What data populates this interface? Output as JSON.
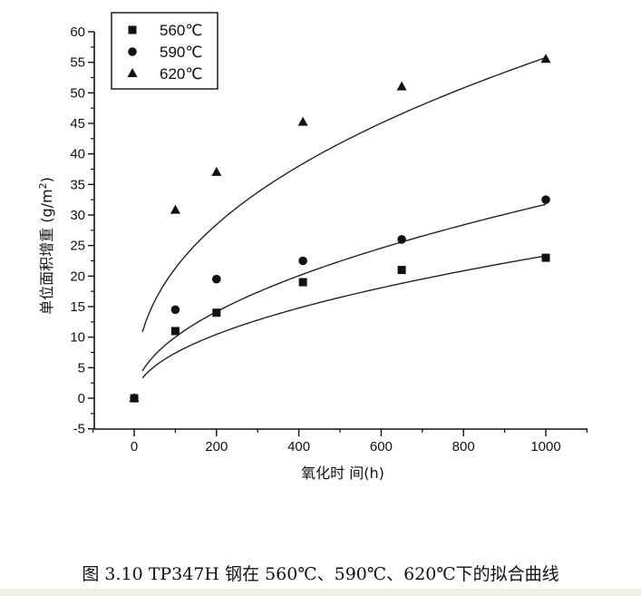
{
  "chart_data": {
    "type": "scatter",
    "xlabel": "氧化时 间(h)",
    "ylabel_main": "单位面积增重 (g/m",
    "ylabel_sup": "2",
    "ylabel_end": ")",
    "xlim": [
      -100,
      1100
    ],
    "ylim": [
      -5,
      60
    ],
    "x_ticks": [
      0,
      200,
      400,
      600,
      800,
      1000
    ],
    "y_ticks": [
      -5,
      0,
      5,
      10,
      15,
      20,
      25,
      30,
      35,
      40,
      45,
      50,
      55,
      60
    ],
    "legend_position": "top-left",
    "grid": false,
    "series": [
      {
        "name": "560℃",
        "marker": "square",
        "x": [
          0,
          100,
          200,
          410,
          650,
          1000
        ],
        "y": [
          0,
          11,
          14,
          19,
          21,
          23
        ],
        "fit": {
          "a": 0.7459,
          "b": 0.4983,
          "x_from": 20,
          "x_to": 1000
        }
      },
      {
        "name": "590℃",
        "marker": "circle",
        "x": [
          0,
          100,
          200,
          410,
          650,
          1000
        ],
        "y": [
          0,
          14.5,
          19.5,
          22.5,
          26,
          32.5
        ],
        "fit": {
          "a": 0.9973,
          "b": 0.5009,
          "x_from": 20,
          "x_to": 1000
        }
      },
      {
        "name": "620℃",
        "marker": "triangle",
        "x": [
          0,
          100,
          200,
          410,
          650,
          1000
        ],
        "y": [
          0,
          30.8,
          37,
          45.2,
          51,
          55.5
        ],
        "fit": {
          "a": 3.1006,
          "b": 0.4183,
          "x_from": 20,
          "x_to": 1000
        }
      }
    ]
  },
  "caption": "图 3.10 TP347H 钢在 560℃、590℃、620℃下的拟合曲线"
}
